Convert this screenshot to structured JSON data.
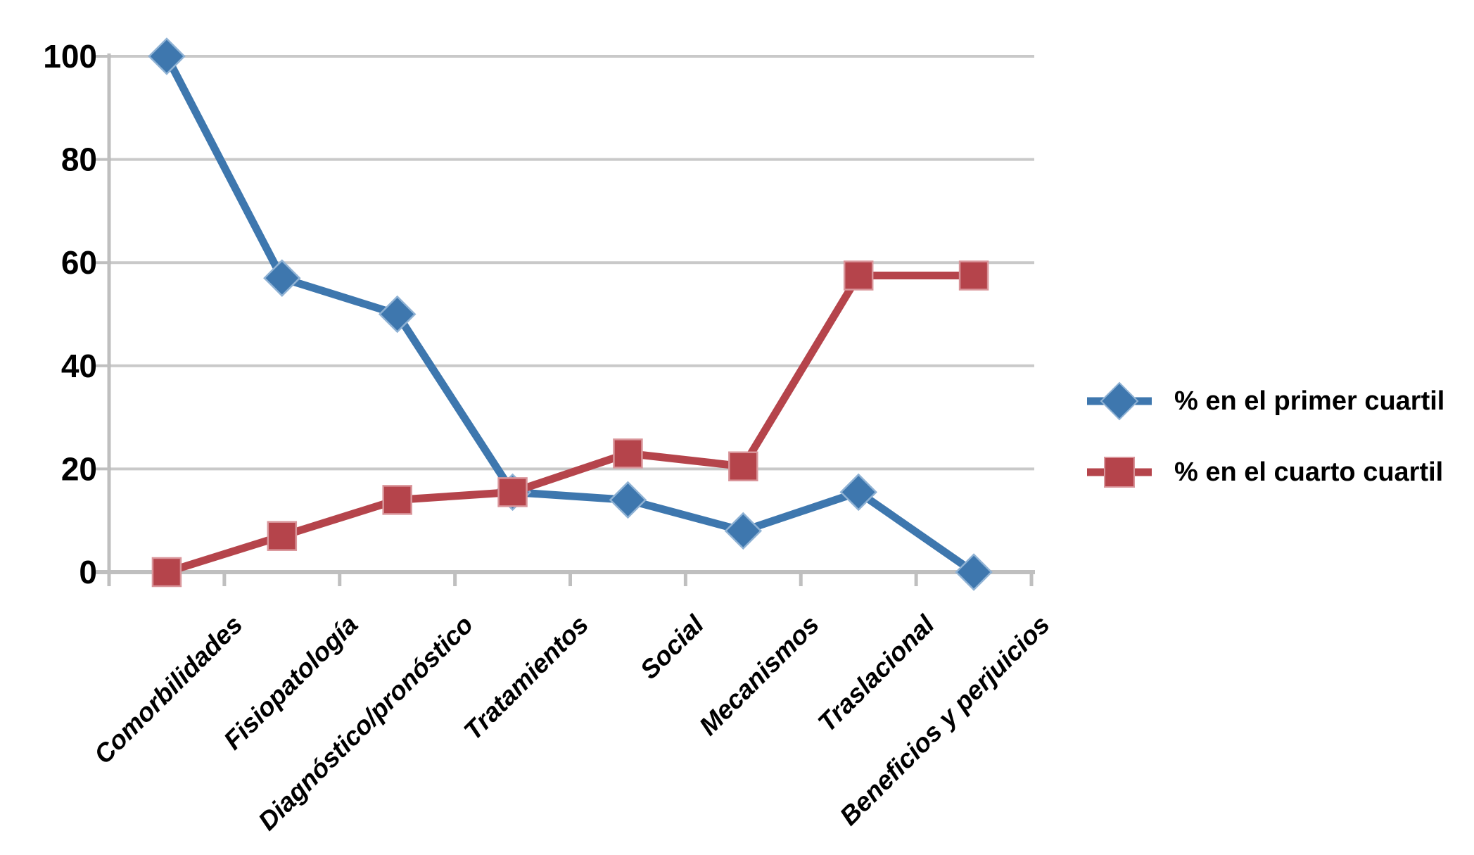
{
  "chart_data": {
    "type": "line",
    "title": "",
    "categories": [
      "Comorbilidades",
      "Fisiopatología",
      "Diagnóstico/pronóstico",
      "Tratamientos",
      "Social",
      "Mecanismos",
      "Traslacional",
      "Beneficios y perjuicios"
    ],
    "series": [
      {
        "name": "% en el primer cuartil",
        "color": "#3E77AE",
        "marker": "diamond",
        "marker_edge": "#8FB2D4",
        "values": [
          100,
          57,
          50,
          15.5,
          14,
          8,
          15.5,
          0
        ]
      },
      {
        "name": "% en el cuarto cuartil",
        "color": "#B5444B",
        "marker": "square",
        "marker_edge": "#D9959A",
        "values": [
          0,
          7,
          14,
          15.5,
          23,
          20.5,
          57.5,
          57.5
        ]
      }
    ],
    "y_ticks": [
      0,
      20,
      40,
      60,
      80,
      100
    ],
    "y_tick_labels": [
      "0",
      "20",
      "40",
      "60",
      "80",
      "100"
    ],
    "ylim": [
      0,
      100
    ],
    "xlabel": "",
    "ylabel": "",
    "grid": "horizontal",
    "grid_color": "#C9C9C9",
    "axis_color": "#BFBFBF",
    "text_color": "#000000",
    "legend_position": "right",
    "x_label_rotation_deg": -45
  }
}
